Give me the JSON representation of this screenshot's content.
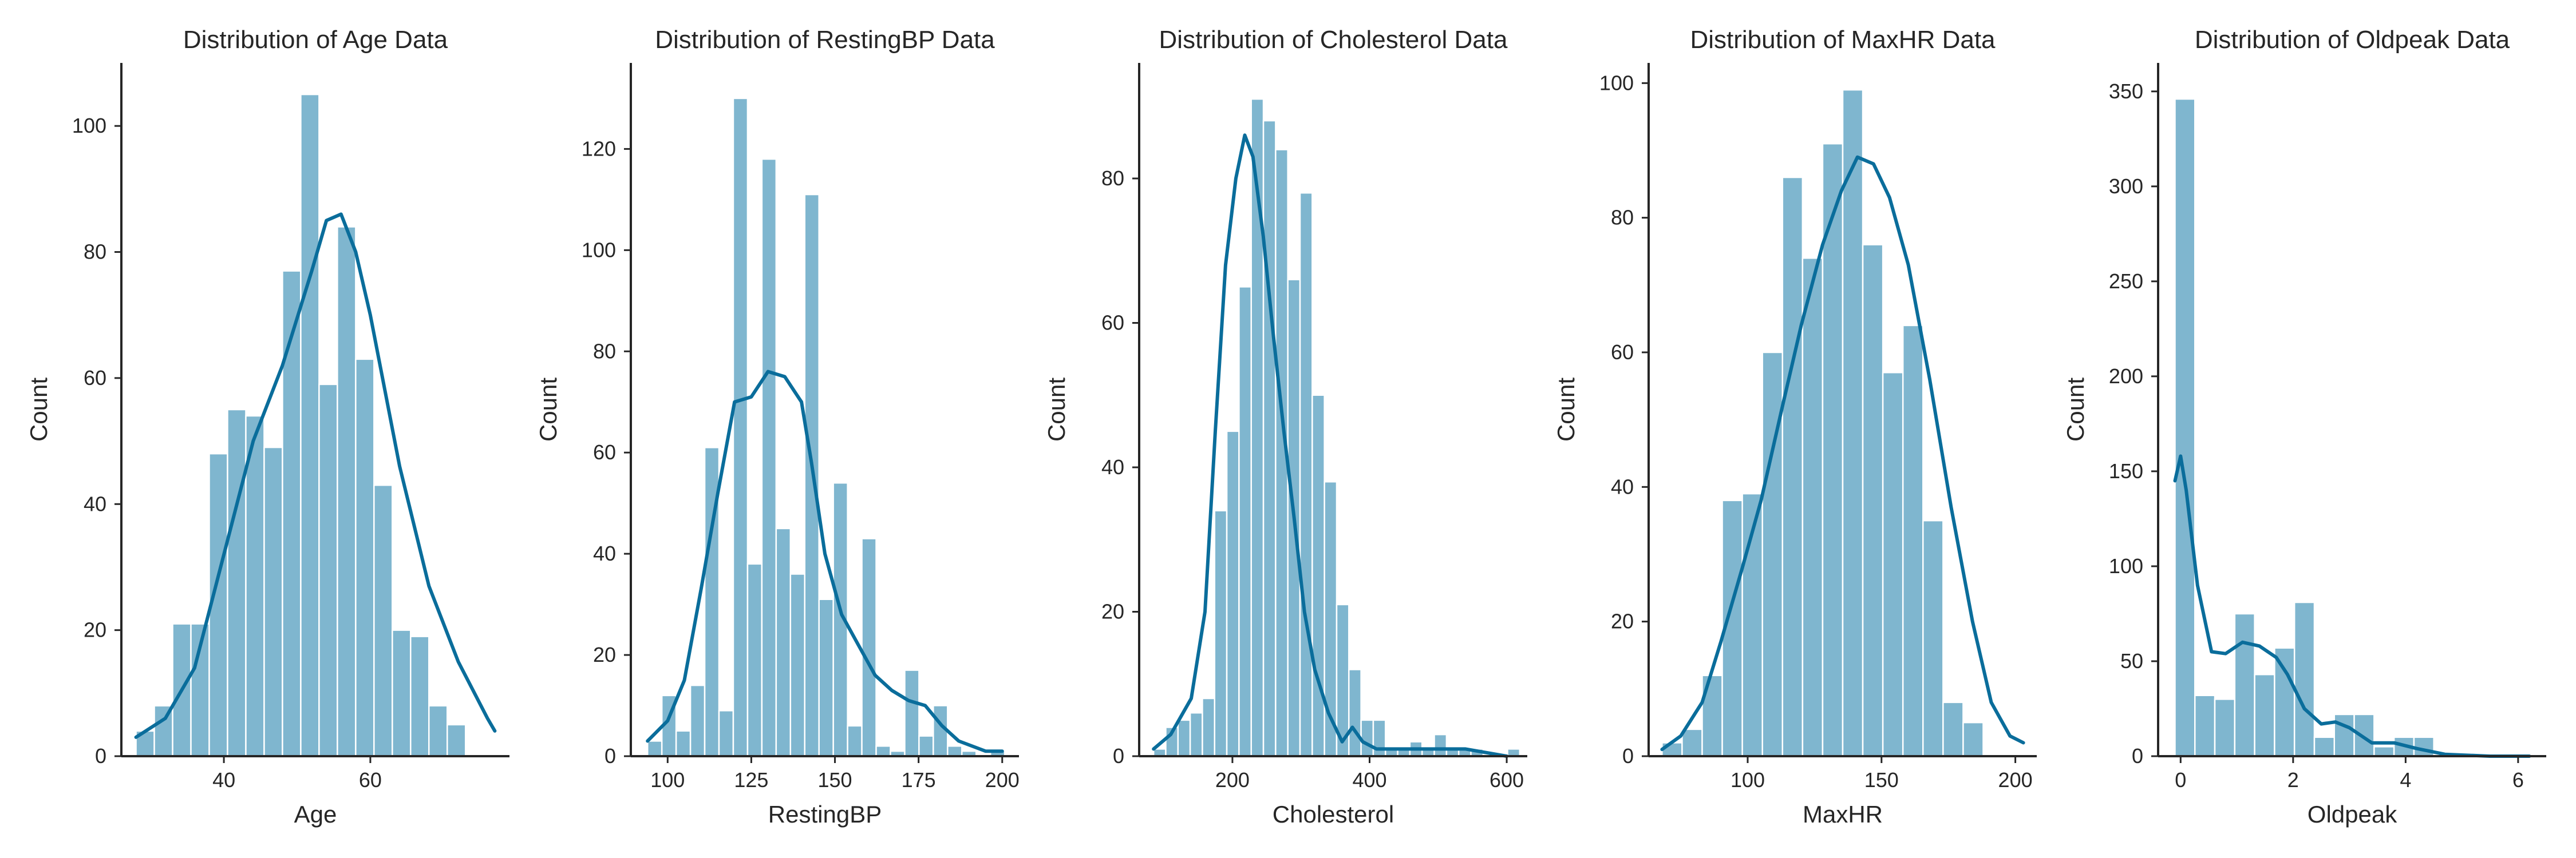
{
  "chart_data": [
    {
      "type": "bar",
      "title": "Distribution of Age Data",
      "xlabel": "Age",
      "ylabel": "Count",
      "xlim": [
        26,
        79
      ],
      "ylim": [
        0,
        110
      ],
      "xticks": [
        40,
        60
      ],
      "yticks": [
        0,
        20,
        40,
        60,
        80,
        100
      ],
      "bin_start": 28,
      "bin_width": 2.5,
      "values": [
        4,
        8,
        21,
        21,
        48,
        55,
        54,
        49,
        77,
        105,
        59,
        84,
        63,
        43,
        20,
        19,
        8,
        5
      ],
      "kde": [
        [
          28,
          3
        ],
        [
          32,
          6
        ],
        [
          36,
          14
        ],
        [
          40,
          32
        ],
        [
          44,
          50
        ],
        [
          48,
          62
        ],
        [
          52,
          77
        ],
        [
          54,
          85
        ],
        [
          56,
          86
        ],
        [
          58,
          80
        ],
        [
          60,
          70
        ],
        [
          64,
          46
        ],
        [
          68,
          27
        ],
        [
          72,
          15
        ],
        [
          76,
          6
        ],
        [
          77,
          4
        ]
      ],
      "grid": false,
      "legend": "none"
    },
    {
      "type": "bar",
      "title": "Distribution of RestingBP Data",
      "xlabel": "RestingBP",
      "ylabel": "Count",
      "xlim": [
        89,
        205
      ],
      "ylim": [
        0,
        137
      ],
      "xticks": [
        100,
        125,
        150,
        175,
        200
      ],
      "yticks": [
        0,
        20,
        40,
        60,
        80,
        100,
        120
      ],
      "bin_start": 94,
      "bin_width": 4.27,
      "values": [
        3,
        12,
        5,
        14,
        61,
        9,
        130,
        38,
        118,
        45,
        36,
        111,
        31,
        54,
        6,
        43,
        2,
        1,
        17,
        4,
        10,
        2,
        1,
        0,
        1
      ],
      "kde": [
        [
          94,
          3
        ],
        [
          100,
          7
        ],
        [
          105,
          15
        ],
        [
          110,
          33
        ],
        [
          115,
          52
        ],
        [
          120,
          70
        ],
        [
          125,
          71
        ],
        [
          130,
          76
        ],
        [
          135,
          75
        ],
        [
          140,
          70
        ],
        [
          143,
          58
        ],
        [
          147,
          40
        ],
        [
          152,
          28
        ],
        [
          157,
          22
        ],
        [
          162,
          16
        ],
        [
          167,
          13
        ],
        [
          172,
          11
        ],
        [
          177,
          10
        ],
        [
          182,
          6
        ],
        [
          187,
          3
        ],
        [
          195,
          1
        ],
        [
          200,
          1
        ]
      ],
      "grid": false,
      "legend": "none"
    },
    {
      "type": "bar",
      "title": "Distribution of Cholesterol Data",
      "xlabel": "Cholesterol",
      "ylabel": "Count",
      "xlim": [
        64,
        630
      ],
      "ylim": [
        0,
        96
      ],
      "xticks": [
        200,
        400,
        600
      ],
      "yticks": [
        0,
        20,
        40,
        60,
        80
      ],
      "bin_start": 85,
      "bin_width": 17.8,
      "values": [
        1,
        4,
        5,
        6,
        8,
        34,
        45,
        65,
        91,
        88,
        84,
        66,
        78,
        50,
        38,
        21,
        12,
        5,
        5,
        1,
        1,
        2,
        1,
        3,
        1,
        1,
        1,
        0,
        0,
        1
      ],
      "kde": [
        [
          85,
          1
        ],
        [
          110,
          3
        ],
        [
          140,
          8
        ],
        [
          160,
          20
        ],
        [
          175,
          45
        ],
        [
          190,
          68
        ],
        [
          205,
          80
        ],
        [
          218,
          86
        ],
        [
          230,
          83
        ],
        [
          245,
          72
        ],
        [
          260,
          58
        ],
        [
          275,
          45
        ],
        [
          290,
          33
        ],
        [
          305,
          20
        ],
        [
          320,
          12
        ],
        [
          340,
          6
        ],
        [
          360,
          2
        ],
        [
          375,
          4
        ],
        [
          390,
          2
        ],
        [
          410,
          1
        ],
        [
          440,
          1
        ],
        [
          470,
          1
        ],
        [
          500,
          1
        ],
        [
          540,
          1
        ],
        [
          600,
          0
        ]
      ],
      "grid": false,
      "legend": "none"
    },
    {
      "type": "bar",
      "title": "Distribution of MaxHR Data",
      "xlabel": "MaxHR",
      "ylabel": "Count",
      "xlim": [
        63,
        208
      ],
      "ylim": [
        0,
        103
      ],
      "xticks": [
        100,
        150,
        200
      ],
      "yticks": [
        0,
        20,
        40,
        60,
        80,
        100
      ],
      "bin_start": 68,
      "bin_width": 7.5,
      "values": [
        2,
        4,
        12,
        38,
        39,
        60,
        86,
        74,
        91,
        99,
        76,
        57,
        64,
        35,
        8,
        5
      ],
      "kde": [
        [
          68,
          1
        ],
        [
          75,
          3
        ],
        [
          83,
          8
        ],
        [
          90,
          17
        ],
        [
          98,
          28
        ],
        [
          105,
          38
        ],
        [
          113,
          52
        ],
        [
          120,
          64
        ],
        [
          128,
          76
        ],
        [
          135,
          84
        ],
        [
          141,
          89
        ],
        [
          147,
          88
        ],
        [
          153,
          83
        ],
        [
          160,
          73
        ],
        [
          168,
          56
        ],
        [
          176,
          37
        ],
        [
          184,
          20
        ],
        [
          191,
          8
        ],
        [
          198,
          3
        ],
        [
          203,
          2
        ]
      ],
      "grid": false,
      "legend": "none"
    },
    {
      "type": "bar",
      "title": "Distribution of Oldpeak Data",
      "xlabel": "Oldpeak",
      "ylabel": "Count",
      "xlim": [
        -0.4,
        6.5
      ],
      "ylim": [
        0,
        365
      ],
      "xticks": [
        0,
        2,
        4,
        6
      ],
      "yticks": [
        0,
        50,
        100,
        150,
        200,
        250,
        300,
        350
      ],
      "bin_start": -0.1,
      "bin_width": 0.354,
      "values": [
        346,
        32,
        30,
        75,
        43,
        57,
        81,
        10,
        22,
        22,
        5,
        10,
        10,
        1,
        0,
        0,
        0,
        0
      ],
      "kde": [
        [
          -0.1,
          145
        ],
        [
          0,
          158
        ],
        [
          0.1,
          140
        ],
        [
          0.3,
          90
        ],
        [
          0.55,
          55
        ],
        [
          0.8,
          54
        ],
        [
          1.1,
          60
        ],
        [
          1.4,
          58
        ],
        [
          1.7,
          52
        ],
        [
          1.9,
          43
        ],
        [
          2.2,
          25
        ],
        [
          2.5,
          17
        ],
        [
          2.75,
          18
        ],
        [
          3.0,
          15
        ],
        [
          3.4,
          7
        ],
        [
          3.8,
          7
        ],
        [
          4.2,
          4
        ],
        [
          4.7,
          1
        ],
        [
          5.5,
          0
        ],
        [
          6.2,
          0
        ]
      ],
      "grid": false,
      "legend": "none"
    }
  ]
}
